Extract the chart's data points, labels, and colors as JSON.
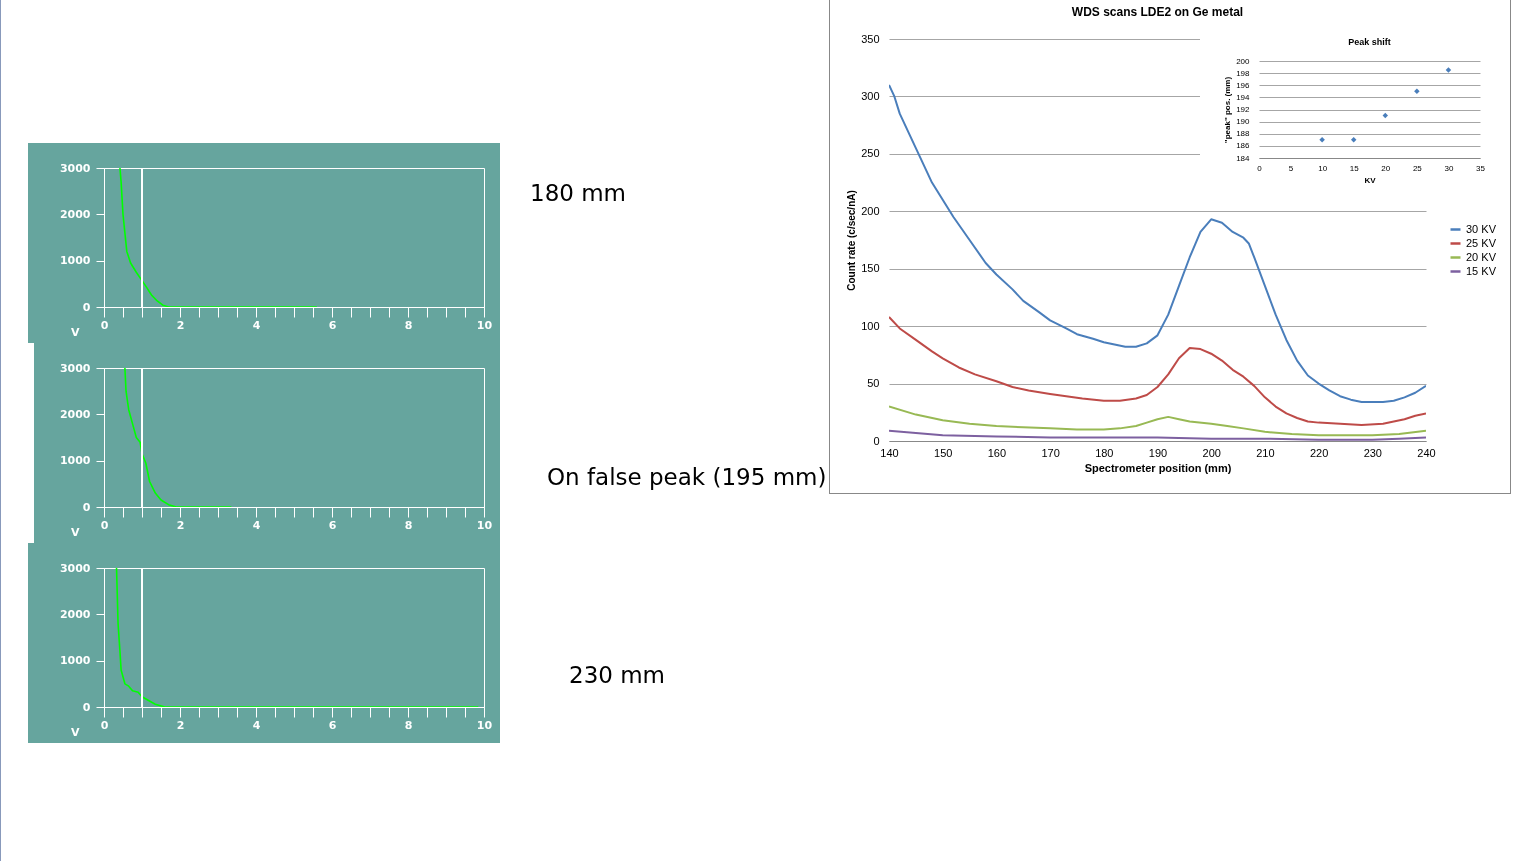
{
  "chart_data": [
    {
      "type": "line",
      "annotations": [
        "180 mm"
      ],
      "xlabel": "V",
      "xlim": [
        0,
        10
      ],
      "ylim": [
        0,
        3000
      ],
      "xticks": [
        0,
        {
          "value": 0.5,
          "label": null
        },
        {
          "value": 1,
          "label": null
        },
        {
          "value": 1.5,
          "label": null
        },
        2,
        {
          "value": 2.5,
          "label": null
        },
        {
          "value": 3,
          "label": null
        },
        {
          "value": 3.5,
          "label": null
        },
        4,
        {
          "value": 4.5,
          "label": null
        },
        {
          "value": 5,
          "label": null
        },
        {
          "value": 5.5,
          "label": null
        },
        6,
        {
          "value": 6.5,
          "label": null
        },
        {
          "value": 7,
          "label": null
        },
        {
          "value": 7.5,
          "label": null
        },
        8,
        {
          "value": 8.5,
          "label": null
        },
        {
          "value": 9,
          "label": null
        },
        {
          "value": 9.5,
          "label": null
        },
        10
      ],
      "yticks": [
        0,
        1000,
        2000,
        3000
      ],
      "grid": false,
      "legend": false,
      "ref_lines": [
        {
          "axis": "x",
          "value": 1,
          "color": "#ffffff"
        }
      ],
      "series": [
        {
          "color": "#00ff00",
          "x": [
            0.42,
            0.45,
            0.5,
            0.55,
            0.6,
            0.7,
            0.85,
            1.0,
            1.1,
            1.25,
            1.4,
            1.55,
            1.7,
            2,
            3,
            4,
            5,
            5.6
          ],
          "values": [
            3000,
            2700,
            2000,
            1600,
            1200,
            950,
            750,
            570,
            450,
            260,
            130,
            40,
            0,
            0,
            0,
            0,
            0,
            0
          ]
        }
      ]
    },
    {
      "type": "line",
      "annotations": [
        "On false peak (195 mm)"
      ],
      "xlabel": "V",
      "xlim": [
        0,
        10
      ],
      "ylim": [
        0,
        3000
      ],
      "xticks": [
        0,
        {
          "value": 0.5,
          "label": null
        },
        {
          "value": 1,
          "label": null
        },
        {
          "value": 1.5,
          "label": null
        },
        2,
        {
          "value": 2.5,
          "label": null
        },
        {
          "value": 3,
          "label": null
        },
        {
          "value": 3.5,
          "label": null
        },
        4,
        {
          "value": 4.5,
          "label": null
        },
        {
          "value": 5,
          "label": null
        },
        {
          "value": 5.5,
          "label": null
        },
        6,
        {
          "value": 6.5,
          "label": null
        },
        {
          "value": 7,
          "label": null
        },
        {
          "value": 7.5,
          "label": null
        },
        8,
        {
          "value": 8.5,
          "label": null
        },
        {
          "value": 9,
          "label": null
        },
        {
          "value": 9.5,
          "label": null
        },
        10
      ],
      "yticks": [
        0,
        1000,
        2000,
        3000
      ],
      "grid": false,
      "legend": false,
      "ref_lines": [
        {
          "axis": "x",
          "value": 1,
          "color": "#ffffff"
        }
      ],
      "series": [
        {
          "color": "#00ff00",
          "x": [
            0.55,
            0.58,
            0.65,
            0.75,
            0.85,
            0.95,
            1.0,
            1.1,
            1.2,
            1.35,
            1.5,
            1.7,
            1.9,
            2.2,
            3,
            3.35
          ],
          "values": [
            3000,
            2500,
            2100,
            1800,
            1500,
            1400,
            1150,
            950,
            550,
            300,
            150,
            50,
            0,
            0,
            0,
            0
          ]
        }
      ]
    },
    {
      "type": "line",
      "annotations": [
        "230 mm"
      ],
      "xlabel": "V",
      "xlim": [
        0,
        10
      ],
      "ylim": [
        0,
        3000
      ],
      "xticks": [
        0,
        {
          "value": 0.5,
          "label": null
        },
        {
          "value": 1,
          "label": null
        },
        {
          "value": 1.5,
          "label": null
        },
        2,
        {
          "value": 2.5,
          "label": null
        },
        {
          "value": 3,
          "label": null
        },
        {
          "value": 3.5,
          "label": null
        },
        4,
        {
          "value": 4.5,
          "label": null
        },
        {
          "value": 5,
          "label": null
        },
        {
          "value": 5.5,
          "label": null
        },
        6,
        {
          "value": 6.5,
          "label": null
        },
        {
          "value": 7,
          "label": null
        },
        {
          "value": 7.5,
          "label": null
        },
        8,
        {
          "value": 8.5,
          "label": null
        },
        {
          "value": 9,
          "label": null
        },
        {
          "value": 9.5,
          "label": null
        },
        10
      ],
      "yticks": [
        0,
        1000,
        2000,
        3000
      ],
      "grid": false,
      "legend": false,
      "ref_lines": [
        {
          "axis": "x",
          "value": 1,
          "color": "#ffffff"
        }
      ],
      "series": [
        {
          "color": "#00ff00",
          "x": [
            0.33,
            0.37,
            0.42,
            0.45,
            0.55,
            0.65,
            0.75,
            0.9,
            1.0,
            1.15,
            1.35,
            1.6,
            2,
            5,
            9.85
          ],
          "values": [
            3000,
            1800,
            1200,
            800,
            500,
            450,
            350,
            320,
            220,
            150,
            60,
            0,
            0,
            0,
            0
          ]
        }
      ]
    },
    {
      "type": "line",
      "title": "WDS scans LDE2 on Ge metal",
      "xlabel": "Spectrometer position (mm)",
      "ylabel": "Count rate (c/sec/nA)",
      "xlim": [
        140,
        240
      ],
      "ylim": [
        0,
        350
      ],
      "xticks": [
        140,
        150,
        160,
        170,
        180,
        190,
        200,
        210,
        220,
        230,
        240
      ],
      "yticks": [
        0,
        50,
        100,
        150,
        200,
        250,
        300,
        350
      ],
      "grid": "y",
      "legend": "right",
      "series": [
        {
          "name": "30 KV",
          "color": "#4a7ebb",
          "x": [
            140,
            141,
            142,
            144,
            146,
            148,
            150,
            152,
            155,
            158,
            160,
            163,
            165,
            168,
            170,
            173,
            175,
            178,
            180,
            182,
            184,
            186,
            188,
            190,
            192,
            194,
            196,
            198,
            200,
            202,
            204,
            206,
            207,
            208,
            210,
            212,
            214,
            216,
            218,
            220,
            222,
            224,
            226,
            228,
            230,
            232,
            234,
            236,
            238,
            240
          ],
          "values": [
            310,
            300,
            285,
            265,
            245,
            225,
            210,
            195,
            175,
            155,
            145,
            132,
            122,
            112,
            105,
            98,
            93,
            89,
            86,
            84,
            82,
            82,
            85,
            92,
            110,
            135,
            160,
            182,
            193,
            190,
            182,
            177,
            172,
            160,
            135,
            110,
            88,
            70,
            57,
            50,
            44,
            39,
            36,
            34,
            34,
            34,
            35,
            38,
            42,
            48
          ]
        },
        {
          "name": "25 KV",
          "color": "#be4b48",
          "x": [
            140,
            142,
            145,
            148,
            150,
            153,
            156,
            160,
            163,
            166,
            170,
            173,
            176,
            180,
            183,
            186,
            188,
            190,
            192,
            194,
            196,
            198,
            200,
            202,
            204,
            206,
            208,
            210,
            212,
            214,
            216,
            218,
            220,
            224,
            228,
            232,
            234,
            236,
            238,
            240
          ],
          "values": [
            108,
            98,
            88,
            78,
            72,
            64,
            58,
            52,
            47,
            44,
            41,
            39,
            37,
            35,
            35,
            37,
            40,
            47,
            58,
            72,
            81,
            80,
            76,
            70,
            62,
            56,
            48,
            38,
            30,
            24,
            20,
            17,
            16,
            15,
            14,
            15,
            17,
            19,
            22,
            24
          ]
        },
        {
          "name": "20 KV",
          "color": "#98b954",
          "x": [
            140,
            145,
            150,
            155,
            160,
            165,
            170,
            175,
            180,
            183,
            186,
            188,
            190,
            192,
            194,
            196,
            200,
            203,
            206,
            210,
            215,
            220,
            225,
            230,
            235,
            240
          ],
          "values": [
            30,
            23,
            18,
            15,
            13,
            12,
            11,
            10,
            10,
            11,
            13,
            16,
            19,
            21,
            19,
            17,
            15,
            13,
            11,
            8,
            6,
            5,
            5,
            5,
            6,
            9
          ]
        },
        {
          "name": "15 KV",
          "color": "#7d60a0",
          "x": [
            140,
            145,
            150,
            160,
            170,
            180,
            187,
            190,
            200,
            210,
            220,
            230,
            235,
            240
          ],
          "values": [
            9,
            7,
            5,
            4,
            3,
            3,
            3,
            3,
            2,
            2,
            1,
            1,
            2,
            3
          ]
        }
      ]
    },
    {
      "type": "scatter",
      "title": "Peak shift",
      "xlabel": "KV",
      "ylabel": "\"peak\" pos. (mm)",
      "xlim": [
        0,
        35
      ],
      "ylim": [
        184,
        200
      ],
      "xticks": [
        0,
        5,
        10,
        15,
        20,
        25,
        30,
        35
      ],
      "yticks": [
        184,
        186,
        188,
        190,
        192,
        194,
        196,
        198,
        200
      ],
      "grid": "y",
      "legend": false,
      "marker": "diamond",
      "series": [
        {
          "color": "#4a7ebb",
          "x": [
            10,
            15,
            20,
            25,
            30
          ],
          "values": [
            187,
            187,
            191,
            195,
            198.5
          ]
        }
      ]
    }
  ]
}
